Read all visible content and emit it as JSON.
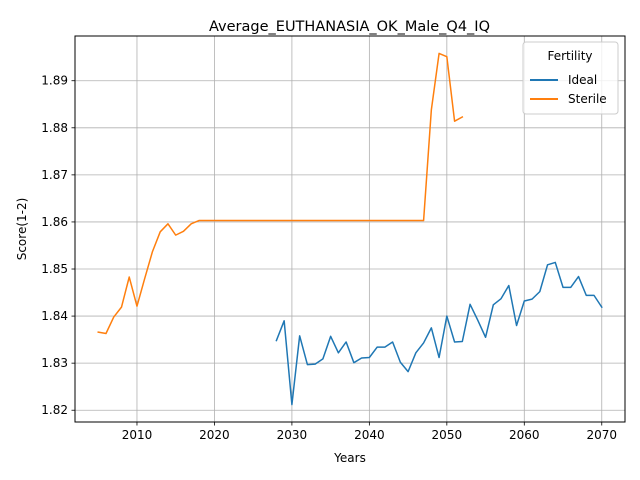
{
  "chart_data": {
    "type": "line",
    "title": "Average_EUTHANASIA_OK_Male_Q4_IQ",
    "xlabel": "Years",
    "ylabel": "Score(1-2)",
    "xlim": [
      2002,
      2073
    ],
    "ylim": [
      1.8175,
      1.8995
    ],
    "xticks": [
      2010,
      2020,
      2030,
      2040,
      2050,
      2060,
      2070
    ],
    "yticks": [
      1.82,
      1.83,
      1.84,
      1.85,
      1.86,
      1.87,
      1.88,
      1.89
    ],
    "grid": true,
    "legend": {
      "title": "Fertility",
      "placement": "top-right"
    },
    "series": [
      {
        "name": "Ideal",
        "color": "#1f77b4",
        "x": [
          2028,
          2029,
          2030,
          2031,
          2032,
          2033,
          2034,
          2035,
          2036,
          2037,
          2038,
          2039,
          2040,
          2041,
          2042,
          2043,
          2044,
          2045,
          2046,
          2047,
          2048,
          2049,
          2050,
          2051,
          2052,
          2053,
          2054,
          2055,
          2056,
          2057,
          2058,
          2059,
          2060,
          2061,
          2062,
          2063,
          2064,
          2065,
          2066,
          2067,
          2068,
          2069,
          2070
        ],
        "y": [
          1.8348,
          1.839,
          1.8212,
          1.8358,
          1.8297,
          1.8298,
          1.8309,
          1.8357,
          1.8322,
          1.8345,
          1.8301,
          1.8311,
          1.8312,
          1.8334,
          1.8334,
          1.8345,
          1.8302,
          1.8282,
          1.8322,
          1.8343,
          1.8375,
          1.8312,
          1.84,
          1.8345,
          1.8346,
          1.8425,
          1.8391,
          1.8355,
          1.8424,
          1.8437,
          1.8465,
          1.838,
          1.8432,
          1.8436,
          1.8452,
          1.8509,
          1.8514,
          1.8461,
          1.8461,
          1.8484,
          1.8444,
          1.8444,
          1.8419
        ]
      },
      {
        "name": "Sterile",
        "color": "#ff7f0e",
        "x": [
          2005,
          2006,
          2007,
          2008,
          2009,
          2010,
          2011,
          2012,
          2013,
          2014,
          2015,
          2016,
          2017,
          2018,
          2019,
          2020,
          2025,
          2030,
          2035,
          2040,
          2045,
          2047,
          2048,
          2049,
          2050,
          2051,
          2052
        ],
        "y": [
          1.8366,
          1.8363,
          1.8398,
          1.8419,
          1.8483,
          1.8421,
          1.848,
          1.8537,
          1.8579,
          1.8596,
          1.8572,
          1.858,
          1.8596,
          1.8603,
          1.8603,
          1.8603,
          1.8603,
          1.8603,
          1.8603,
          1.8603,
          1.8603,
          1.8603,
          1.8838,
          1.8958,
          1.8951,
          1.8814,
          1.8823
        ]
      }
    ]
  }
}
